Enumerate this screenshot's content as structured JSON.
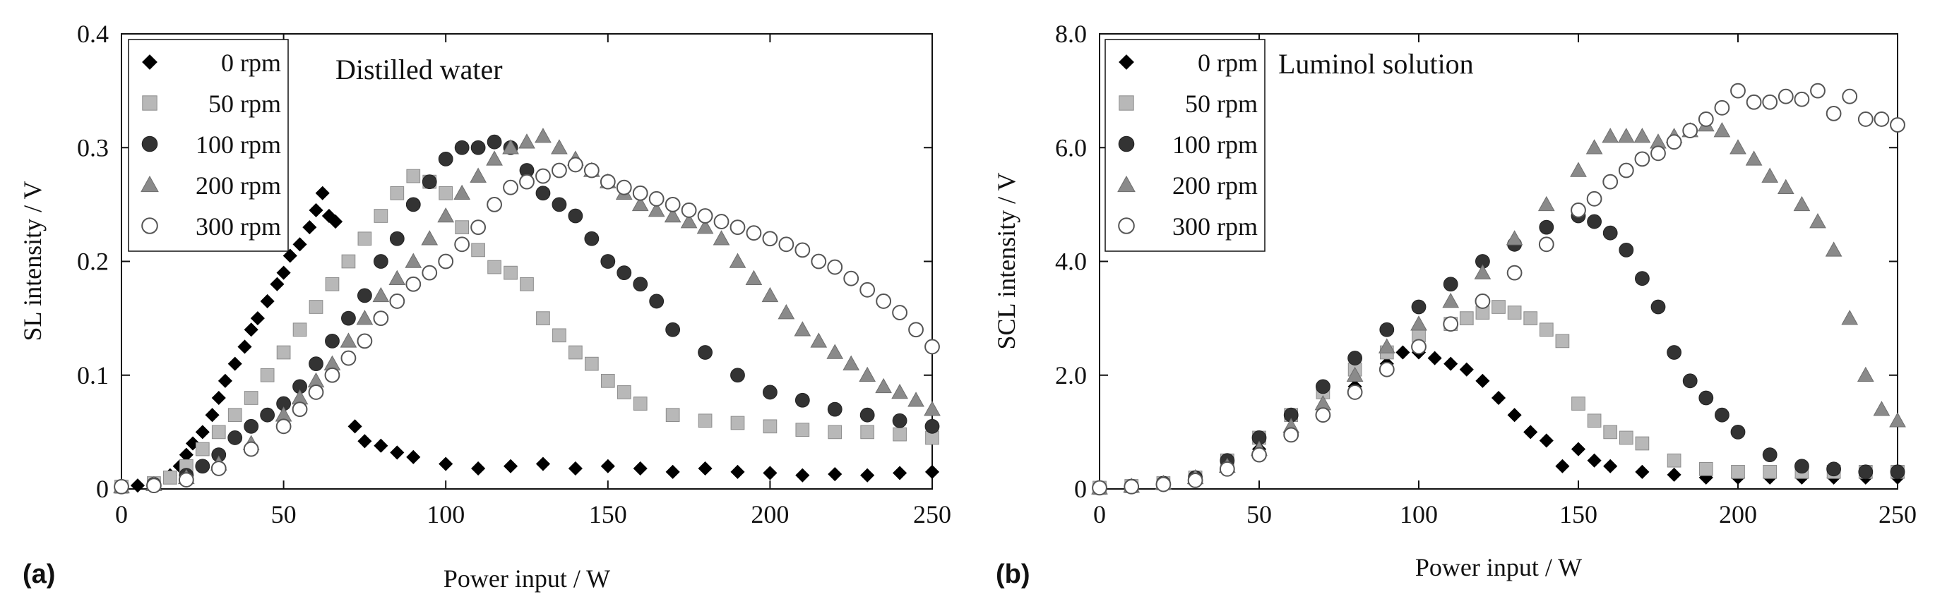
{
  "chart_data": [
    {
      "type": "scatter",
      "panel_label": "(a)",
      "annotation": "Distilled water",
      "xlabel": "Power input / W",
      "ylabel": "SL intensity / V",
      "xlim": [
        0,
        250
      ],
      "ylim": [
        0,
        0.4
      ],
      "xticks": [
        "0",
        "50",
        "100",
        "150",
        "200",
        "250"
      ],
      "yticks": [
        "0",
        "0.1",
        "0.2",
        "0.3",
        "0.4"
      ],
      "grid": false,
      "legend_position": "top-left",
      "series": [
        {
          "name": "0 rpm",
          "marker": "diamond",
          "x": [
            0,
            5,
            10,
            15,
            18,
            20,
            22,
            25,
            28,
            30,
            32,
            35,
            38,
            40,
            42,
            45,
            48,
            50,
            52,
            55,
            58,
            60,
            62,
            64,
            66,
            72,
            75,
            80,
            85,
            90,
            100,
            110,
            120,
            130,
            140,
            150,
            160,
            170,
            180,
            190,
            200,
            210,
            220,
            230,
            240,
            250
          ],
          "y": [
            0.002,
            0.003,
            0.005,
            0.012,
            0.02,
            0.03,
            0.04,
            0.05,
            0.065,
            0.08,
            0.095,
            0.11,
            0.125,
            0.14,
            0.15,
            0.165,
            0.18,
            0.19,
            0.205,
            0.215,
            0.23,
            0.245,
            0.26,
            0.24,
            0.235,
            0.055,
            0.042,
            0.038,
            0.032,
            0.028,
            0.022,
            0.018,
            0.02,
            0.022,
            0.018,
            0.02,
            0.018,
            0.015,
            0.018,
            0.015,
            0.014,
            0.012,
            0.013,
            0.012,
            0.014,
            0.015
          ]
        },
        {
          "name": "50 rpm",
          "marker": "square",
          "x": [
            0,
            10,
            15,
            20,
            25,
            30,
            35,
            40,
            45,
            50,
            55,
            60,
            65,
            70,
            75,
            80,
            85,
            90,
            95,
            100,
            105,
            110,
            115,
            120,
            125,
            130,
            135,
            140,
            145,
            150,
            155,
            160,
            170,
            180,
            190,
            200,
            210,
            220,
            230,
            240,
            250
          ],
          "y": [
            0.002,
            0.005,
            0.01,
            0.02,
            0.035,
            0.05,
            0.065,
            0.08,
            0.1,
            0.12,
            0.14,
            0.16,
            0.18,
            0.2,
            0.22,
            0.24,
            0.26,
            0.275,
            0.27,
            0.26,
            0.23,
            0.21,
            0.195,
            0.19,
            0.18,
            0.15,
            0.135,
            0.12,
            0.11,
            0.095,
            0.085,
            0.075,
            0.065,
            0.06,
            0.058,
            0.055,
            0.052,
            0.05,
            0.05,
            0.048,
            0.045
          ]
        },
        {
          "name": "100 rpm",
          "marker": "circle",
          "x": [
            0,
            10,
            20,
            25,
            30,
            35,
            40,
            45,
            50,
            55,
            60,
            65,
            70,
            75,
            80,
            85,
            90,
            95,
            100,
            105,
            110,
            115,
            120,
            125,
            130,
            135,
            140,
            145,
            150,
            155,
            160,
            165,
            170,
            180,
            190,
            200,
            210,
            220,
            230,
            240,
            250
          ],
          "y": [
            0.002,
            0.004,
            0.012,
            0.02,
            0.03,
            0.045,
            0.055,
            0.065,
            0.075,
            0.09,
            0.11,
            0.13,
            0.15,
            0.17,
            0.2,
            0.22,
            0.25,
            0.27,
            0.29,
            0.3,
            0.3,
            0.305,
            0.3,
            0.28,
            0.26,
            0.25,
            0.24,
            0.22,
            0.2,
            0.19,
            0.18,
            0.165,
            0.14,
            0.12,
            0.1,
            0.085,
            0.078,
            0.07,
            0.065,
            0.06,
            0.055
          ]
        },
        {
          "name": "200 rpm",
          "marker": "triangle",
          "x": [
            0,
            10,
            20,
            30,
            40,
            50,
            55,
            60,
            65,
            70,
            75,
            80,
            85,
            90,
            95,
            100,
            105,
            110,
            115,
            120,
            125,
            130,
            135,
            140,
            145,
            150,
            155,
            160,
            165,
            170,
            175,
            180,
            185,
            190,
            195,
            200,
            205,
            210,
            215,
            220,
            225,
            230,
            235,
            240,
            245,
            250
          ],
          "y": [
            0.002,
            0.004,
            0.01,
            0.022,
            0.04,
            0.065,
            0.08,
            0.095,
            0.11,
            0.13,
            0.15,
            0.17,
            0.185,
            0.2,
            0.22,
            0.24,
            0.26,
            0.275,
            0.29,
            0.3,
            0.305,
            0.31,
            0.3,
            0.29,
            0.28,
            0.27,
            0.26,
            0.25,
            0.245,
            0.24,
            0.235,
            0.23,
            0.22,
            0.2,
            0.185,
            0.17,
            0.155,
            0.14,
            0.13,
            0.12,
            0.11,
            0.1,
            0.09,
            0.085,
            0.078,
            0.07
          ]
        },
        {
          "name": "300 rpm",
          "marker": "open-circle",
          "x": [
            0,
            10,
            20,
            30,
            40,
            50,
            55,
            60,
            65,
            70,
            75,
            80,
            85,
            90,
            95,
            100,
            105,
            110,
            115,
            120,
            125,
            130,
            135,
            140,
            145,
            150,
            155,
            160,
            165,
            170,
            175,
            180,
            185,
            190,
            195,
            200,
            205,
            210,
            215,
            220,
            225,
            230,
            235,
            240,
            245,
            250
          ],
          "y": [
            0.002,
            0.003,
            0.008,
            0.018,
            0.035,
            0.055,
            0.07,
            0.085,
            0.1,
            0.115,
            0.13,
            0.15,
            0.165,
            0.18,
            0.19,
            0.2,
            0.215,
            0.23,
            0.25,
            0.265,
            0.27,
            0.275,
            0.28,
            0.285,
            0.28,
            0.27,
            0.265,
            0.26,
            0.255,
            0.25,
            0.245,
            0.24,
            0.235,
            0.23,
            0.225,
            0.22,
            0.215,
            0.21,
            0.2,
            0.195,
            0.185,
            0.175,
            0.165,
            0.155,
            0.14,
            0.125
          ]
        }
      ]
    },
    {
      "type": "scatter",
      "panel_label": "(b)",
      "annotation": "Luminol solution",
      "xlabel": "Power input / W",
      "ylabel": "SCL intensity / V",
      "xlim": [
        0,
        250
      ],
      "ylim": [
        0,
        8.0
      ],
      "xticks": [
        "0",
        "50",
        "100",
        "150",
        "200",
        "250"
      ],
      "yticks": [
        "0",
        "2.0",
        "4.0",
        "6.0",
        "8.0"
      ],
      "grid": false,
      "legend_position": "top-left",
      "series": [
        {
          "name": "0 rpm",
          "marker": "diamond",
          "x": [
            0,
            10,
            20,
            30,
            40,
            50,
            60,
            70,
            80,
            90,
            95,
            100,
            105,
            110,
            115,
            120,
            125,
            130,
            135,
            140,
            145,
            150,
            155,
            160,
            170,
            180,
            190,
            200,
            210,
            220,
            230,
            240,
            250
          ],
          "y": [
            0.02,
            0.05,
            0.1,
            0.2,
            0.4,
            0.7,
            1.0,
            1.4,
            1.8,
            2.2,
            2.4,
            2.4,
            2.3,
            2.2,
            2.1,
            1.9,
            1.6,
            1.3,
            1.0,
            0.85,
            0.4,
            0.7,
            0.5,
            0.4,
            0.3,
            0.25,
            0.2,
            0.2,
            0.2,
            0.2,
            0.2,
            0.2,
            0.2
          ]
        },
        {
          "name": "50 rpm",
          "marker": "square",
          "x": [
            0,
            10,
            20,
            30,
            40,
            50,
            60,
            70,
            80,
            90,
            100,
            110,
            115,
            120,
            125,
            130,
            135,
            140,
            145,
            150,
            155,
            160,
            165,
            170,
            180,
            190,
            200,
            210,
            220,
            230,
            240,
            250
          ],
          "y": [
            0.02,
            0.05,
            0.1,
            0.2,
            0.5,
            0.9,
            1.3,
            1.7,
            2.1,
            2.4,
            2.7,
            2.9,
            3.0,
            3.1,
            3.2,
            3.1,
            3.0,
            2.8,
            2.6,
            1.5,
            1.2,
            1.0,
            0.9,
            0.8,
            0.5,
            0.35,
            0.3,
            0.3,
            0.3,
            0.3,
            0.3,
            0.3
          ]
        },
        {
          "name": "100 rpm",
          "marker": "circle",
          "x": [
            0,
            10,
            20,
            30,
            40,
            50,
            60,
            70,
            80,
            90,
            100,
            110,
            120,
            130,
            140,
            150,
            155,
            160,
            165,
            170,
            175,
            180,
            185,
            190,
            195,
            200,
            210,
            220,
            230,
            240,
            250
          ],
          "y": [
            0.02,
            0.05,
            0.1,
            0.2,
            0.5,
            0.9,
            1.3,
            1.8,
            2.3,
            2.8,
            3.2,
            3.6,
            4.0,
            4.3,
            4.6,
            4.8,
            4.7,
            4.5,
            4.2,
            3.7,
            3.2,
            2.4,
            1.9,
            1.6,
            1.3,
            1.0,
            0.6,
            0.4,
            0.35,
            0.3,
            0.3
          ]
        },
        {
          "name": "200 rpm",
          "marker": "triangle",
          "x": [
            0,
            10,
            20,
            30,
            40,
            50,
            60,
            70,
            80,
            90,
            100,
            110,
            120,
            130,
            140,
            150,
            155,
            160,
            165,
            170,
            175,
            180,
            185,
            190,
            195,
            200,
            205,
            210,
            215,
            220,
            225,
            230,
            235,
            240,
            245,
            250
          ],
          "y": [
            0.02,
            0.05,
            0.1,
            0.2,
            0.4,
            0.7,
            1.1,
            1.5,
            2.0,
            2.5,
            2.9,
            3.3,
            3.8,
            4.4,
            5.0,
            5.6,
            6.0,
            6.2,
            6.2,
            6.2,
            6.1,
            6.2,
            6.3,
            6.4,
            6.3,
            6.0,
            5.8,
            5.5,
            5.3,
            5.0,
            4.7,
            4.2,
            3.0,
            2.0,
            1.4,
            1.2
          ]
        },
        {
          "name": "300 rpm",
          "marker": "open-circle",
          "x": [
            0,
            10,
            20,
            30,
            40,
            50,
            60,
            70,
            80,
            90,
            100,
            110,
            120,
            130,
            140,
            150,
            155,
            160,
            165,
            170,
            175,
            180,
            185,
            190,
            195,
            200,
            205,
            210,
            215,
            220,
            225,
            230,
            235,
            240,
            245,
            250
          ],
          "y": [
            0.02,
            0.04,
            0.08,
            0.15,
            0.35,
            0.6,
            0.95,
            1.3,
            1.7,
            2.1,
            2.5,
            2.9,
            3.3,
            3.8,
            4.3,
            4.9,
            5.1,
            5.4,
            5.6,
            5.8,
            5.9,
            6.1,
            6.3,
            6.5,
            6.7,
            7.0,
            6.8,
            6.8,
            6.9,
            6.85,
            7.0,
            6.6,
            6.9,
            6.5,
            6.5,
            6.4
          ]
        }
      ]
    }
  ]
}
